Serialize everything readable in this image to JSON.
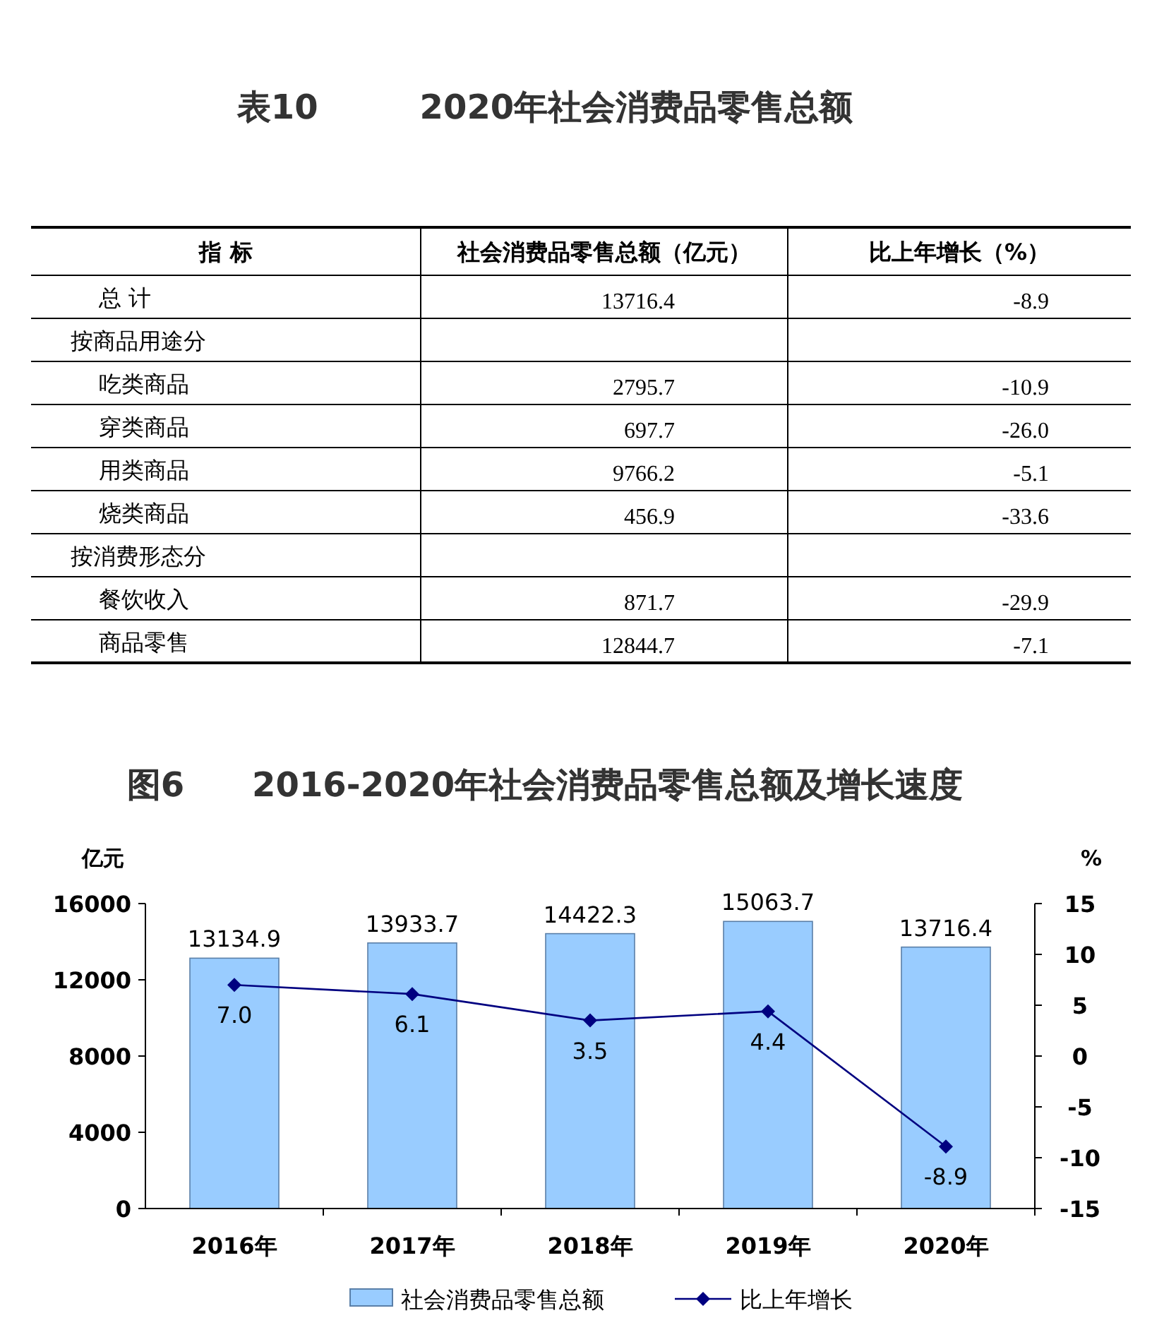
{
  "chart_data": [
    {
      "type": "other",
      "title": "表10　　　2020年社会消费品零售总额",
      "categories": [
        "指 标",
        "社会消费品零售总额（亿元）",
        "比上年增长（%）"
      ],
      "y_categories": [
        "总 计",
        "按商品用途分",
        "吃类商品",
        "穿类商品",
        "用类商品",
        "烧类商品",
        "按消费形态分",
        "餐饮收入",
        "商品零售"
      ],
      "cell_labels": [
        [
          "13716.4",
          "-8.9"
        ],
        [
          null,
          null
        ],
        [
          "2795.7",
          "-10.9"
        ],
        [
          "697.7",
          "-26.0"
        ],
        [
          "9766.2",
          "-5.1"
        ],
        [
          "456.9",
          "-33.6"
        ],
        [
          null,
          null
        ],
        [
          "871.7",
          "-29.9"
        ],
        [
          "12844.7",
          "-7.1"
        ]
      ]
    },
    {
      "type": "bar",
      "title": "图6　　2016-2020年社会消费品零售总额及增长速度",
      "ylabel": "亿元",
      "y2label": "%",
      "categories": [
        "2016年",
        "2017年",
        "2018年",
        "2019年",
        "2020年"
      ],
      "series": [
        {
          "name": "社会消费品零售总额",
          "color": "#99ccff",
          "values": [
            13134.9,
            13933.7,
            14422.3,
            15063.7,
            13716.4
          ]
        },
        {
          "name": "比上年增长",
          "type": "line",
          "axis": "y2",
          "color": "#000080",
          "marker": "diamond",
          "values": [
            7.0,
            6.1,
            3.5,
            4.4,
            -8.9
          ],
          "value_labels": [
            "7.0",
            "6.1",
            "3.5",
            "4.4",
            "-8.9"
          ]
        }
      ],
      "ylim": [
        0,
        16000
      ],
      "yticks": [
        0,
        4000,
        8000,
        12000,
        16000
      ],
      "y2lim": [
        -15,
        15
      ],
      "y2ticks": [
        -15,
        -10,
        -5,
        0,
        5,
        10,
        15
      ],
      "data_labels": true,
      "legend": "bottom",
      "grid": false
    }
  ]
}
